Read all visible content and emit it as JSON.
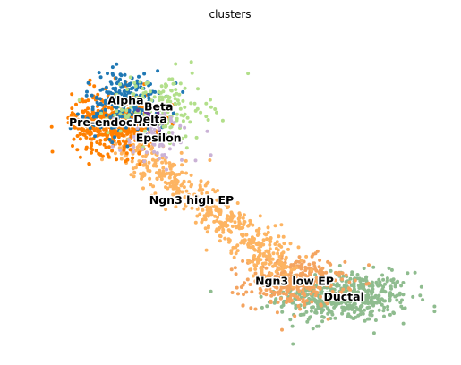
{
  "chart_data": {
    "type": "scatter",
    "title": "clusters",
    "xlabel": "",
    "ylabel": "",
    "axes_visible": false,
    "grid": false,
    "legend": "on data",
    "xlim": [
      0,
      100
    ],
    "ylim": [
      0,
      100
    ],
    "clusters": [
      {
        "name": "Ductal",
        "color": "#8fbc8f",
        "center": [
          77,
          16
        ],
        "spread": [
          8,
          4
        ],
        "points": 500
      },
      {
        "name": "Ngn3 low EP",
        "color": "#f4a460",
        "center": [
          65,
          21
        ],
        "spread": [
          6,
          4
        ],
        "points": 330
      },
      {
        "name": "Ngn3 high EP",
        "color": "#fdb462",
        "center": [
          40,
          47
        ],
        "spread": [
          10,
          9
        ],
        "points": 520
      },
      {
        "name": "Pre-endocrine",
        "color": "#ff7f00",
        "center": [
          21,
          72
        ],
        "spread": [
          5,
          5
        ],
        "points": 460
      },
      {
        "name": "Alpha",
        "color": "#1f78b4",
        "center": [
          24,
          79
        ],
        "spread": [
          5,
          5
        ],
        "points": 220
      },
      {
        "name": "Beta",
        "color": "#b2df8a",
        "center": [
          32,
          77
        ],
        "spread": [
          6,
          5
        ],
        "points": 200
      },
      {
        "name": "Delta",
        "color": "#6a3d9a",
        "center": [
          30,
          73
        ],
        "spread": [
          2,
          2
        ],
        "points": 25
      },
      {
        "name": "Epsilon",
        "color": "#cab2d6",
        "center": [
          32,
          67
        ],
        "spread": [
          5,
          4
        ],
        "points": 70
      }
    ]
  }
}
